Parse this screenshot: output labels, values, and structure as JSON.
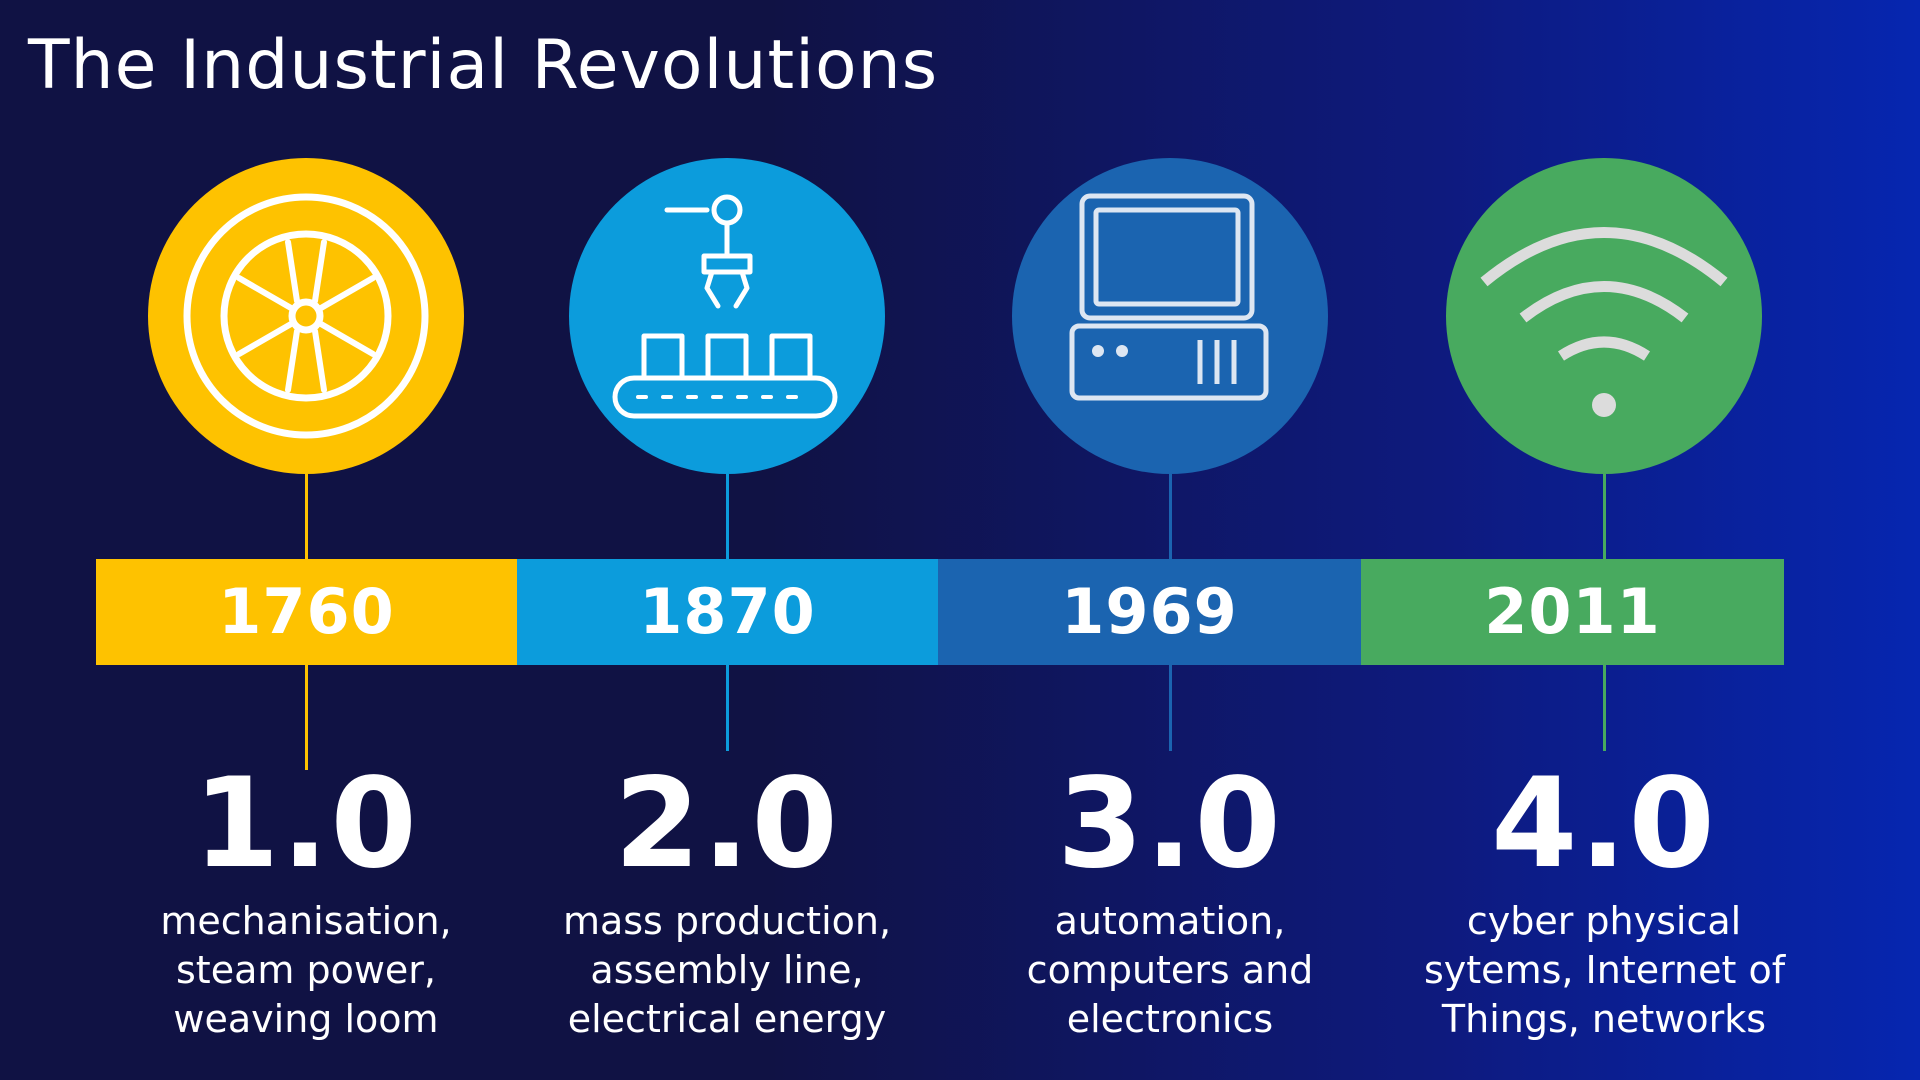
{
  "title": "The Industrial Revolutions",
  "colors": {
    "background_left": "#101244",
    "background_right": "#0626b0",
    "icon_stroke": "#ffffff",
    "wifi_stroke": "#dcdcdc"
  },
  "eras": [
    {
      "year": "1760",
      "version": "1.0",
      "description": [
        "mechanisation,",
        "steam power,",
        "weaving loom"
      ],
      "icon": "wheel-icon",
      "color": "#fec200"
    },
    {
      "year": "1870",
      "version": "2.0",
      "description": [
        "mass production,",
        "assembly line,",
        "electrical energy"
      ],
      "icon": "conveyor-robot-arm-icon",
      "color": "#0c9cdc"
    },
    {
      "year": "1969",
      "version": "3.0",
      "description": [
        "automation,",
        "computers and",
        "electronics"
      ],
      "icon": "computer-icon",
      "color": "#1b64b0"
    },
    {
      "year": "2011",
      "version": "4.0",
      "description": [
        "cyber physical",
        "sytems, Internet of",
        "Things, networks"
      ],
      "icon": "wifi-icon",
      "color": "#48aa5f"
    }
  ]
}
